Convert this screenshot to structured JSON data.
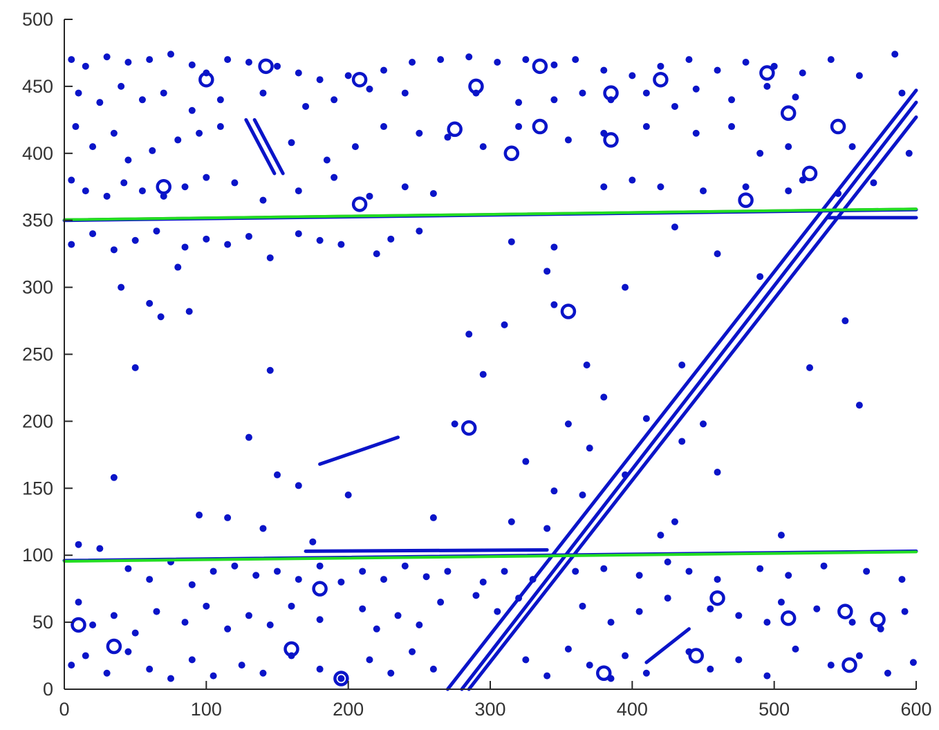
{
  "chart_data": {
    "type": "scatter",
    "title": "",
    "xlabel": "",
    "ylabel": "",
    "xlim": [
      0,
      600
    ],
    "ylim": [
      0,
      500
    ],
    "grid": false,
    "x_ticks": [
      "0",
      "100",
      "200",
      "300",
      "400",
      "500",
      "600"
    ],
    "y_ticks": [
      "0",
      "50",
      "100",
      "150",
      "200",
      "250",
      "300",
      "350",
      "400",
      "450",
      "500"
    ],
    "colors": {
      "edge": "#0a14c8",
      "detected_line": "#22dd22",
      "reference_line": "#6e6e6e",
      "axis": "#262626"
    },
    "detected_lines": [
      {
        "x": [
          0,
          600
        ],
        "y": [
          351,
          359
        ]
      },
      {
        "x": [
          0,
          600
        ],
        "y": [
          96,
          103
        ]
      }
    ],
    "reference_lines": [
      {
        "x": [
          0,
          600
        ],
        "y": [
          351,
          359
        ]
      },
      {
        "x": [
          0,
          600
        ],
        "y": [
          96,
          103
        ]
      }
    ],
    "edge_lines": [
      {
        "x": [
          0,
          600
        ],
        "y": [
          350,
          358
        ]
      },
      {
        "x": [
          538,
          600
        ],
        "y": [
          352,
          352
        ]
      },
      {
        "x": [
          0,
          600
        ],
        "y": [
          96,
          103
        ]
      },
      {
        "x": [
          170,
          340
        ],
        "y": [
          103,
          104
        ]
      },
      {
        "x": [
          270,
          600
        ],
        "y": [
          0,
          447
        ]
      },
      {
        "x": [
          285,
          600
        ],
        "y": [
          0,
          427
        ]
      },
      {
        "x": [
          280,
          600
        ],
        "y": [
          0,
          438
        ]
      },
      {
        "x": [
          128,
          148
        ],
        "y": [
          425,
          385
        ]
      },
      {
        "x": [
          134,
          154
        ],
        "y": [
          425,
          385
        ]
      },
      {
        "x": [
          180,
          235
        ],
        "y": [
          168,
          188
        ]
      },
      {
        "x": [
          410,
          440
        ],
        "y": [
          20,
          45
        ]
      }
    ],
    "edge_points": [
      {
        "x": 5,
        "y": 470
      },
      {
        "x": 15,
        "y": 465
      },
      {
        "x": 30,
        "y": 472
      },
      {
        "x": 45,
        "y": 468
      },
      {
        "x": 60,
        "y": 470
      },
      {
        "x": 75,
        "y": 474
      },
      {
        "x": 90,
        "y": 466
      },
      {
        "x": 100,
        "y": 460
      },
      {
        "x": 115,
        "y": 470
      },
      {
        "x": 130,
        "y": 468
      },
      {
        "x": 150,
        "y": 465
      },
      {
        "x": 165,
        "y": 460
      },
      {
        "x": 180,
        "y": 455
      },
      {
        "x": 200,
        "y": 458
      },
      {
        "x": 225,
        "y": 462
      },
      {
        "x": 245,
        "y": 468
      },
      {
        "x": 265,
        "y": 470
      },
      {
        "x": 285,
        "y": 472
      },
      {
        "x": 305,
        "y": 468
      },
      {
        "x": 325,
        "y": 470
      },
      {
        "x": 345,
        "y": 466
      },
      {
        "x": 360,
        "y": 470
      },
      {
        "x": 380,
        "y": 462
      },
      {
        "x": 400,
        "y": 458
      },
      {
        "x": 420,
        "y": 465
      },
      {
        "x": 440,
        "y": 470
      },
      {
        "x": 460,
        "y": 462
      },
      {
        "x": 480,
        "y": 468
      },
      {
        "x": 500,
        "y": 465
      },
      {
        "x": 520,
        "y": 460
      },
      {
        "x": 540,
        "y": 470
      },
      {
        "x": 560,
        "y": 458
      },
      {
        "x": 585,
        "y": 474
      },
      {
        "x": 10,
        "y": 445
      },
      {
        "x": 25,
        "y": 438
      },
      {
        "x": 40,
        "y": 450
      },
      {
        "x": 55,
        "y": 440
      },
      {
        "x": 70,
        "y": 445
      },
      {
        "x": 90,
        "y": 432
      },
      {
        "x": 110,
        "y": 440
      },
      {
        "x": 140,
        "y": 445
      },
      {
        "x": 170,
        "y": 435
      },
      {
        "x": 190,
        "y": 440
      },
      {
        "x": 215,
        "y": 448
      },
      {
        "x": 240,
        "y": 445
      },
      {
        "x": 290,
        "y": 445
      },
      {
        "x": 320,
        "y": 438
      },
      {
        "x": 345,
        "y": 440
      },
      {
        "x": 365,
        "y": 445
      },
      {
        "x": 385,
        "y": 440
      },
      {
        "x": 410,
        "y": 445
      },
      {
        "x": 430,
        "y": 435
      },
      {
        "x": 445,
        "y": 448
      },
      {
        "x": 470,
        "y": 440
      },
      {
        "x": 495,
        "y": 450
      },
      {
        "x": 515,
        "y": 442
      },
      {
        "x": 590,
        "y": 445
      },
      {
        "x": 8,
        "y": 420
      },
      {
        "x": 20,
        "y": 405
      },
      {
        "x": 35,
        "y": 415
      },
      {
        "x": 45,
        "y": 395
      },
      {
        "x": 62,
        "y": 402
      },
      {
        "x": 80,
        "y": 410
      },
      {
        "x": 95,
        "y": 415
      },
      {
        "x": 110,
        "y": 420
      },
      {
        "x": 160,
        "y": 408
      },
      {
        "x": 185,
        "y": 395
      },
      {
        "x": 205,
        "y": 405
      },
      {
        "x": 225,
        "y": 420
      },
      {
        "x": 250,
        "y": 415
      },
      {
        "x": 270,
        "y": 412
      },
      {
        "x": 295,
        "y": 405
      },
      {
        "x": 320,
        "y": 420
      },
      {
        "x": 355,
        "y": 410
      },
      {
        "x": 380,
        "y": 415
      },
      {
        "x": 410,
        "y": 420
      },
      {
        "x": 445,
        "y": 415
      },
      {
        "x": 470,
        "y": 420
      },
      {
        "x": 490,
        "y": 400
      },
      {
        "x": 510,
        "y": 405
      },
      {
        "x": 555,
        "y": 405
      },
      {
        "x": 595,
        "y": 400
      },
      {
        "x": 5,
        "y": 380
      },
      {
        "x": 15,
        "y": 372
      },
      {
        "x": 30,
        "y": 368
      },
      {
        "x": 42,
        "y": 378
      },
      {
        "x": 55,
        "y": 372
      },
      {
        "x": 70,
        "y": 368
      },
      {
        "x": 85,
        "y": 375
      },
      {
        "x": 100,
        "y": 382
      },
      {
        "x": 120,
        "y": 378
      },
      {
        "x": 140,
        "y": 365
      },
      {
        "x": 165,
        "y": 372
      },
      {
        "x": 190,
        "y": 382
      },
      {
        "x": 215,
        "y": 368
      },
      {
        "x": 240,
        "y": 375
      },
      {
        "x": 260,
        "y": 370
      },
      {
        "x": 380,
        "y": 375
      },
      {
        "x": 400,
        "y": 380
      },
      {
        "x": 420,
        "y": 375
      },
      {
        "x": 450,
        "y": 372
      },
      {
        "x": 480,
        "y": 375
      },
      {
        "x": 510,
        "y": 372
      },
      {
        "x": 520,
        "y": 380
      },
      {
        "x": 545,
        "y": 370
      },
      {
        "x": 570,
        "y": 378
      },
      {
        "x": 5,
        "y": 332
      },
      {
        "x": 20,
        "y": 340
      },
      {
        "x": 35,
        "y": 328
      },
      {
        "x": 50,
        "y": 335
      },
      {
        "x": 65,
        "y": 342
      },
      {
        "x": 85,
        "y": 330
      },
      {
        "x": 100,
        "y": 336
      },
      {
        "x": 115,
        "y": 332
      },
      {
        "x": 130,
        "y": 338
      },
      {
        "x": 145,
        "y": 322
      },
      {
        "x": 165,
        "y": 340
      },
      {
        "x": 180,
        "y": 335
      },
      {
        "x": 195,
        "y": 332
      },
      {
        "x": 220,
        "y": 325
      },
      {
        "x": 230,
        "y": 336
      },
      {
        "x": 250,
        "y": 342
      },
      {
        "x": 315,
        "y": 334
      },
      {
        "x": 345,
        "y": 330
      },
      {
        "x": 430,
        "y": 345
      },
      {
        "x": 460,
        "y": 325
      },
      {
        "x": 40,
        "y": 300
      },
      {
        "x": 60,
        "y": 288
      },
      {
        "x": 68,
        "y": 278
      },
      {
        "x": 80,
        "y": 315
      },
      {
        "x": 88,
        "y": 282
      },
      {
        "x": 340,
        "y": 312
      },
      {
        "x": 345,
        "y": 287
      },
      {
        "x": 395,
        "y": 300
      },
      {
        "x": 490,
        "y": 308
      },
      {
        "x": 50,
        "y": 240
      },
      {
        "x": 145,
        "y": 238
      },
      {
        "x": 285,
        "y": 265
      },
      {
        "x": 295,
        "y": 235
      },
      {
        "x": 310,
        "y": 272
      },
      {
        "x": 368,
        "y": 242
      },
      {
        "x": 380,
        "y": 218
      },
      {
        "x": 435,
        "y": 242
      },
      {
        "x": 525,
        "y": 240
      },
      {
        "x": 550,
        "y": 275
      },
      {
        "x": 560,
        "y": 212
      },
      {
        "x": 130,
        "y": 188
      },
      {
        "x": 275,
        "y": 198
      },
      {
        "x": 355,
        "y": 198
      },
      {
        "x": 370,
        "y": 180
      },
      {
        "x": 410,
        "y": 202
      },
      {
        "x": 435,
        "y": 185
      },
      {
        "x": 450,
        "y": 198
      },
      {
        "x": 35,
        "y": 158
      },
      {
        "x": 150,
        "y": 160
      },
      {
        "x": 165,
        "y": 152
      },
      {
        "x": 200,
        "y": 145
      },
      {
        "x": 325,
        "y": 170
      },
      {
        "x": 345,
        "y": 148
      },
      {
        "x": 365,
        "y": 145
      },
      {
        "x": 395,
        "y": 160
      },
      {
        "x": 460,
        "y": 162
      },
      {
        "x": 95,
        "y": 130
      },
      {
        "x": 115,
        "y": 128
      },
      {
        "x": 140,
        "y": 120
      },
      {
        "x": 175,
        "y": 110
      },
      {
        "x": 260,
        "y": 128
      },
      {
        "x": 315,
        "y": 125
      },
      {
        "x": 340,
        "y": 120
      },
      {
        "x": 420,
        "y": 115
      },
      {
        "x": 430,
        "y": 125
      },
      {
        "x": 505,
        "y": 115
      },
      {
        "x": 10,
        "y": 108
      },
      {
        "x": 25,
        "y": 105
      },
      {
        "x": 45,
        "y": 90
      },
      {
        "x": 60,
        "y": 82
      },
      {
        "x": 75,
        "y": 95
      },
      {
        "x": 90,
        "y": 78
      },
      {
        "x": 105,
        "y": 88
      },
      {
        "x": 120,
        "y": 92
      },
      {
        "x": 135,
        "y": 85
      },
      {
        "x": 150,
        "y": 88
      },
      {
        "x": 165,
        "y": 82
      },
      {
        "x": 180,
        "y": 92
      },
      {
        "x": 195,
        "y": 80
      },
      {
        "x": 210,
        "y": 88
      },
      {
        "x": 225,
        "y": 82
      },
      {
        "x": 240,
        "y": 92
      },
      {
        "x": 255,
        "y": 84
      },
      {
        "x": 270,
        "y": 88
      },
      {
        "x": 295,
        "y": 80
      },
      {
        "x": 310,
        "y": 88
      },
      {
        "x": 330,
        "y": 82
      },
      {
        "x": 360,
        "y": 88
      },
      {
        "x": 380,
        "y": 90
      },
      {
        "x": 405,
        "y": 85
      },
      {
        "x": 425,
        "y": 95
      },
      {
        "x": 440,
        "y": 88
      },
      {
        "x": 460,
        "y": 82
      },
      {
        "x": 490,
        "y": 90
      },
      {
        "x": 510,
        "y": 85
      },
      {
        "x": 535,
        "y": 92
      },
      {
        "x": 565,
        "y": 88
      },
      {
        "x": 590,
        "y": 82
      },
      {
        "x": 10,
        "y": 65
      },
      {
        "x": 20,
        "y": 48
      },
      {
        "x": 35,
        "y": 55
      },
      {
        "x": 50,
        "y": 42
      },
      {
        "x": 65,
        "y": 58
      },
      {
        "x": 85,
        "y": 50
      },
      {
        "x": 100,
        "y": 62
      },
      {
        "x": 115,
        "y": 45
      },
      {
        "x": 130,
        "y": 55
      },
      {
        "x": 145,
        "y": 48
      },
      {
        "x": 160,
        "y": 62
      },
      {
        "x": 180,
        "y": 52
      },
      {
        "x": 210,
        "y": 60
      },
      {
        "x": 220,
        "y": 45
      },
      {
        "x": 235,
        "y": 55
      },
      {
        "x": 250,
        "y": 48
      },
      {
        "x": 265,
        "y": 65
      },
      {
        "x": 290,
        "y": 70
      },
      {
        "x": 305,
        "y": 58
      },
      {
        "x": 320,
        "y": 68
      },
      {
        "x": 365,
        "y": 62
      },
      {
        "x": 385,
        "y": 50
      },
      {
        "x": 405,
        "y": 58
      },
      {
        "x": 425,
        "y": 68
      },
      {
        "x": 455,
        "y": 60
      },
      {
        "x": 475,
        "y": 55
      },
      {
        "x": 495,
        "y": 50
      },
      {
        "x": 505,
        "y": 65
      },
      {
        "x": 530,
        "y": 60
      },
      {
        "x": 555,
        "y": 50
      },
      {
        "x": 575,
        "y": 45
      },
      {
        "x": 592,
        "y": 58
      },
      {
        "x": 5,
        "y": 18
      },
      {
        "x": 15,
        "y": 25
      },
      {
        "x": 30,
        "y": 12
      },
      {
        "x": 45,
        "y": 28
      },
      {
        "x": 60,
        "y": 15
      },
      {
        "x": 75,
        "y": 8
      },
      {
        "x": 90,
        "y": 22
      },
      {
        "x": 105,
        "y": 10
      },
      {
        "x": 125,
        "y": 18
      },
      {
        "x": 140,
        "y": 12
      },
      {
        "x": 160,
        "y": 25
      },
      {
        "x": 180,
        "y": 15
      },
      {
        "x": 195,
        "y": 8
      },
      {
        "x": 215,
        "y": 22
      },
      {
        "x": 230,
        "y": 12
      },
      {
        "x": 245,
        "y": 28
      },
      {
        "x": 260,
        "y": 15
      },
      {
        "x": 325,
        "y": 22
      },
      {
        "x": 340,
        "y": 10
      },
      {
        "x": 355,
        "y": 30
      },
      {
        "x": 370,
        "y": 18
      },
      {
        "x": 385,
        "y": 8
      },
      {
        "x": 395,
        "y": 25
      },
      {
        "x": 410,
        "y": 12
      },
      {
        "x": 440,
        "y": 28
      },
      {
        "x": 455,
        "y": 15
      },
      {
        "x": 475,
        "y": 22
      },
      {
        "x": 495,
        "y": 10
      },
      {
        "x": 515,
        "y": 30
      },
      {
        "x": 540,
        "y": 18
      },
      {
        "x": 560,
        "y": 25
      },
      {
        "x": 580,
        "y": 12
      },
      {
        "x": 598,
        "y": 20
      }
    ],
    "edge_rings": [
      {
        "x": 100,
        "y": 455
      },
      {
        "x": 142,
        "y": 465
      },
      {
        "x": 208,
        "y": 455
      },
      {
        "x": 290,
        "y": 450
      },
      {
        "x": 335,
        "y": 465
      },
      {
        "x": 385,
        "y": 445
      },
      {
        "x": 420,
        "y": 455
      },
      {
        "x": 495,
        "y": 460
      },
      {
        "x": 510,
        "y": 430
      },
      {
        "x": 275,
        "y": 418
      },
      {
        "x": 335,
        "y": 420
      },
      {
        "x": 385,
        "y": 410
      },
      {
        "x": 315,
        "y": 400
      },
      {
        "x": 545,
        "y": 420
      },
      {
        "x": 480,
        "y": 365
      },
      {
        "x": 525,
        "y": 385
      },
      {
        "x": 208,
        "y": 362
      },
      {
        "x": 70,
        "y": 375
      },
      {
        "x": 355,
        "y": 282
      },
      {
        "x": 285,
        "y": 195
      },
      {
        "x": 195,
        "y": 8
      },
      {
        "x": 180,
        "y": 75
      },
      {
        "x": 445,
        "y": 25
      },
      {
        "x": 460,
        "y": 68
      },
      {
        "x": 510,
        "y": 53
      },
      {
        "x": 550,
        "y": 58
      },
      {
        "x": 573,
        "y": 52
      },
      {
        "x": 553,
        "y": 18
      },
      {
        "x": 160,
        "y": 30
      },
      {
        "x": 380,
        "y": 12
      },
      {
        "x": 10,
        "y": 48
      },
      {
        "x": 35,
        "y": 32
      }
    ]
  }
}
